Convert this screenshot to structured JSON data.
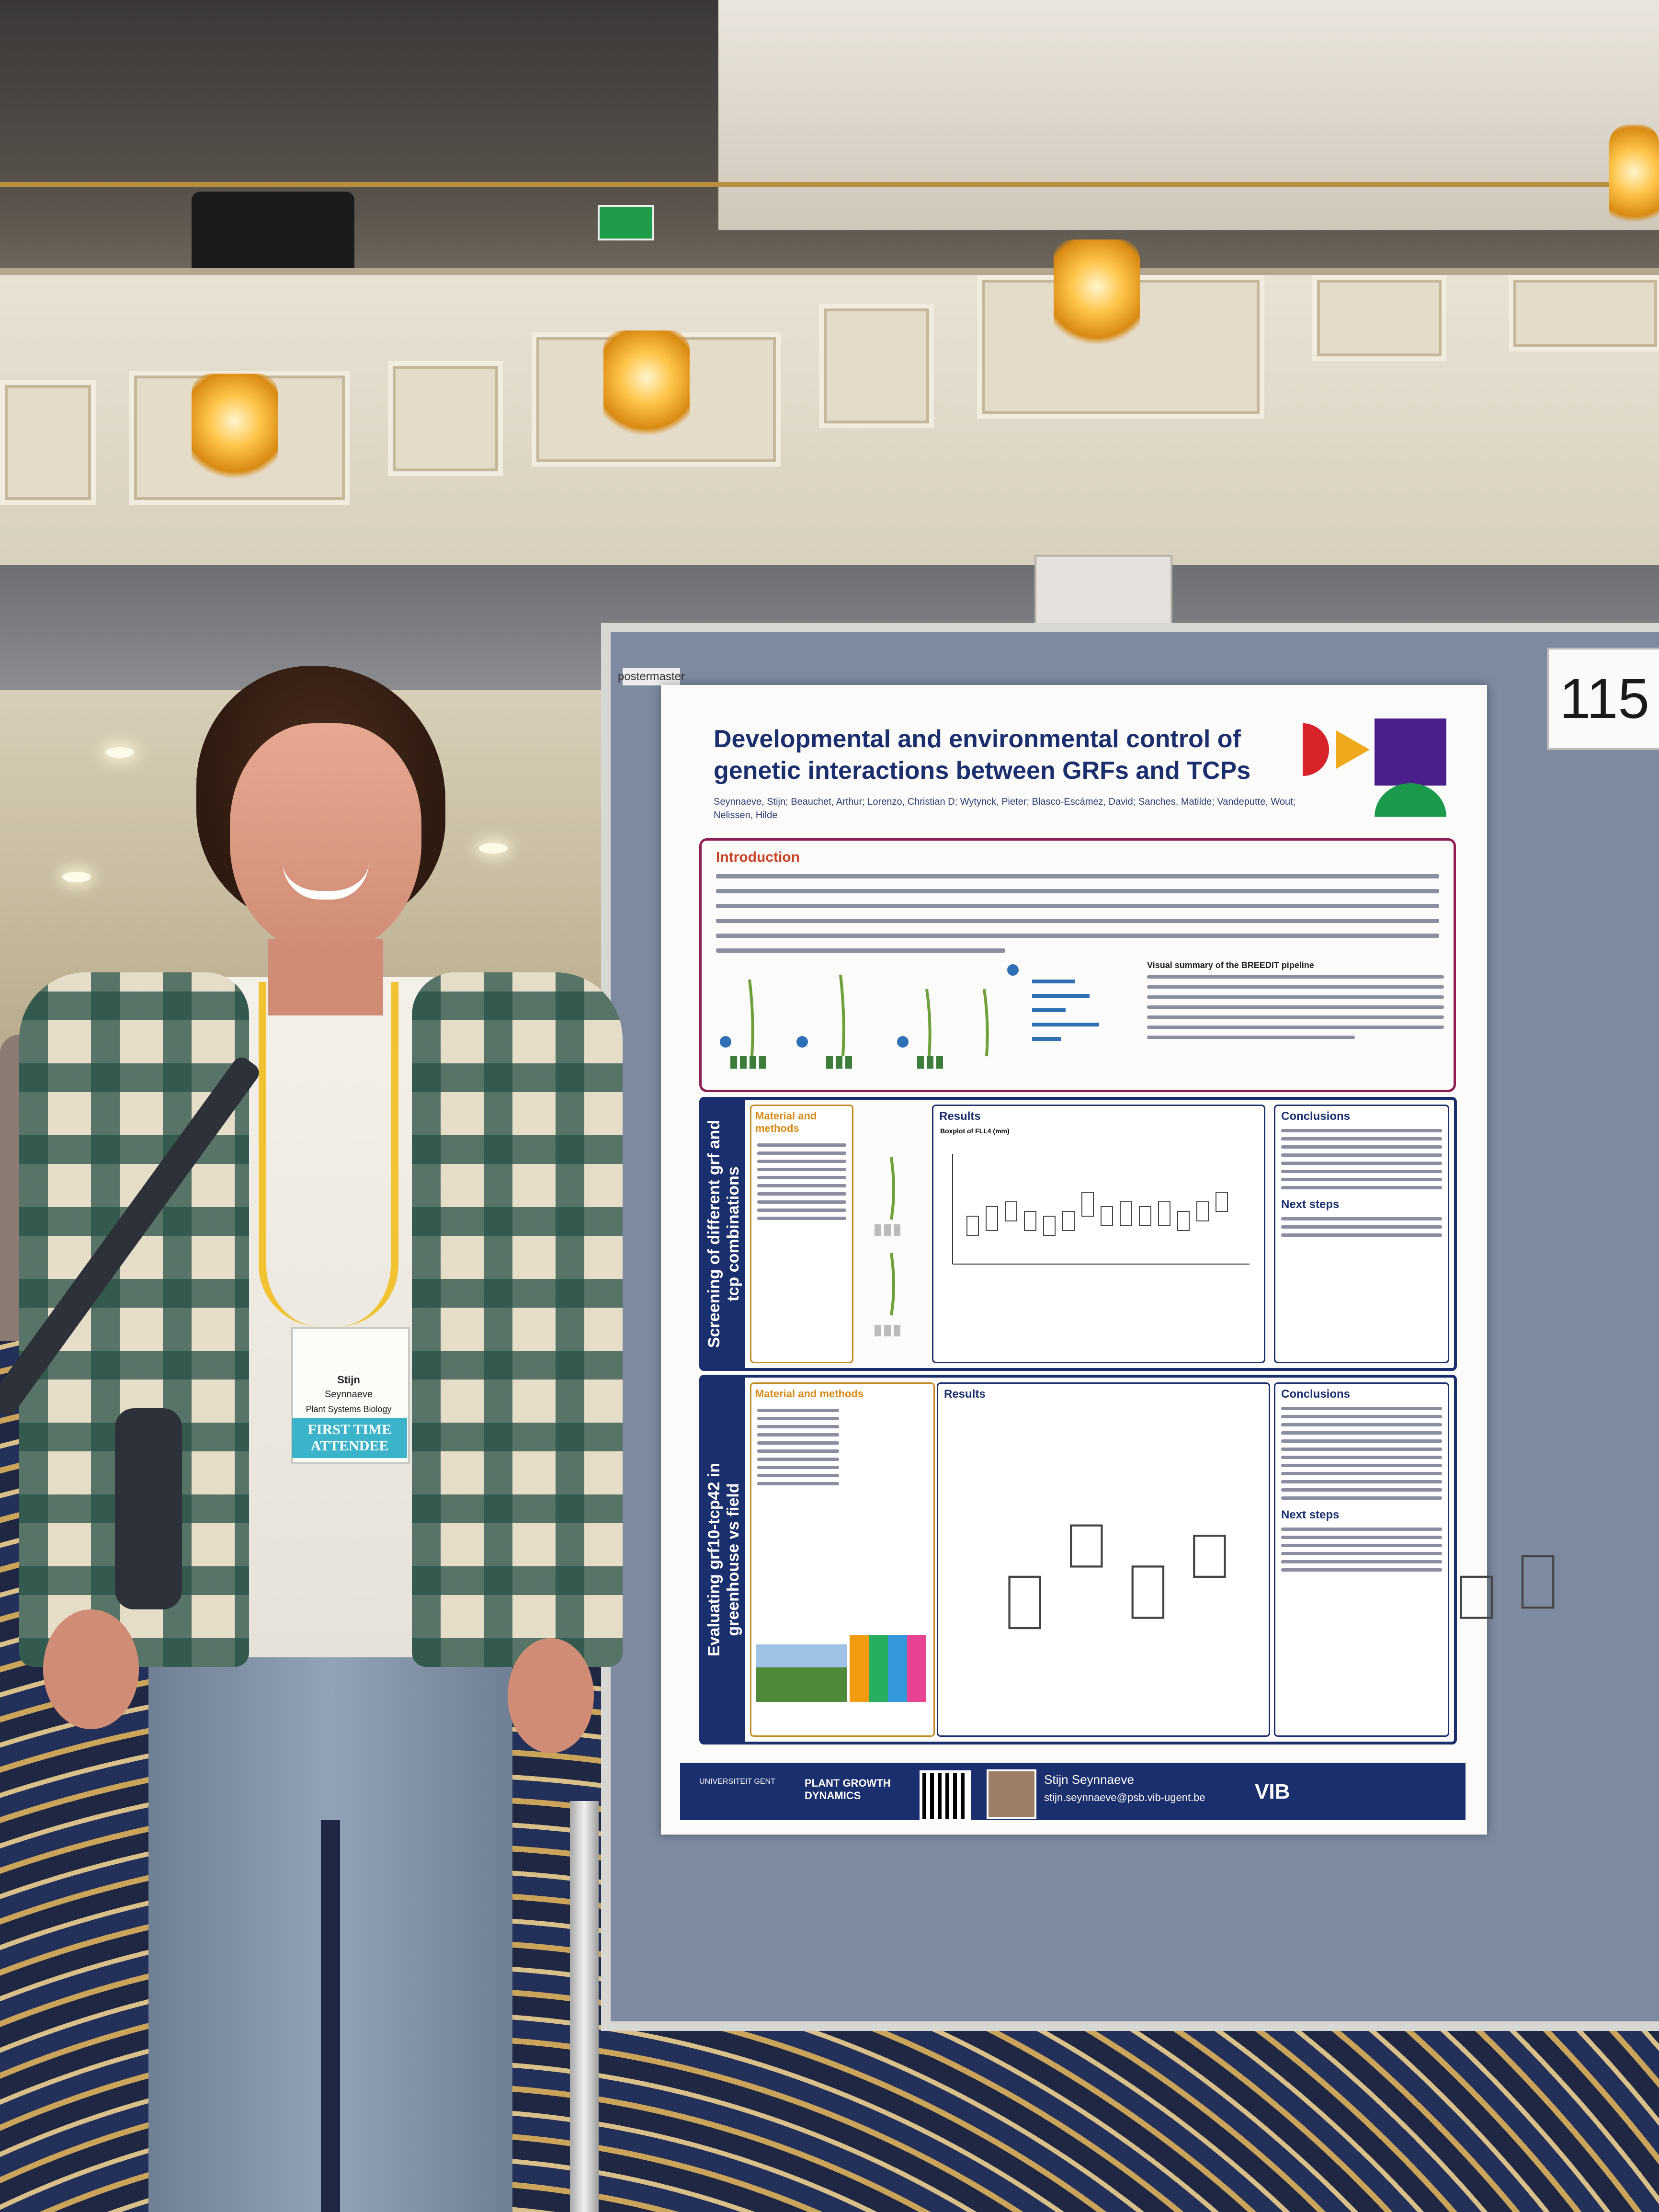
{
  "board_number": "115",
  "board_brand": "postermaster",
  "poster": {
    "title_line1": "Developmental and environmental control of",
    "title_line2": "genetic interactions between GRFs and TCPs",
    "authors": "Seynnaeve, Stijn; Beauchet, Arthur; Lorenzo, Christian D; Wytynck, Pieter; Blasco-Escámez, David; Sanches, Matilde; Vandeputte, Wout; Nelissen, Hilde",
    "intro_heading": "Introduction",
    "pipeline_heading": "Visual summary of the BREEDIT pipeline",
    "block1_side": "Screening of different grf and tcp combinations",
    "block2_side": "Evaluating grf10-tcp42 in greenhouse vs field",
    "mm_heading": "Material and methods",
    "results_heading": "Results",
    "conclusions_heading": "Conclusions",
    "next_steps_heading": "Next steps",
    "plot1_title": "Boxplot of FLL4 (mm)",
    "presenter_name": "Stijn Seynnaeve",
    "presenter_email": "stijn.seynnaeve@psb.vib-ugent.be",
    "logo_vib": "VIB",
    "logo_pgd": "PLANT GROWTH DYNAMICS",
    "logo_ugent": "UNIVERSITEIT GENT"
  },
  "badge": {
    "first_name": "Stijn",
    "last_name": "Seynnaeve",
    "affiliation": "Plant Systems Biology",
    "ribbon": "FIRST TIME ATTENDEE"
  },
  "colors": {
    "poster_navy": "#1b2f6e",
    "intro_border": "#8d1d52",
    "accent_orange": "#d98a15",
    "lanyard": "#f1c232",
    "ribbon": "#3bb4c9",
    "logo_red": "#d8232a",
    "logo_yellow": "#f0a81c",
    "logo_purple": "#4a1f8a",
    "logo_green": "#1a9a4a"
  }
}
